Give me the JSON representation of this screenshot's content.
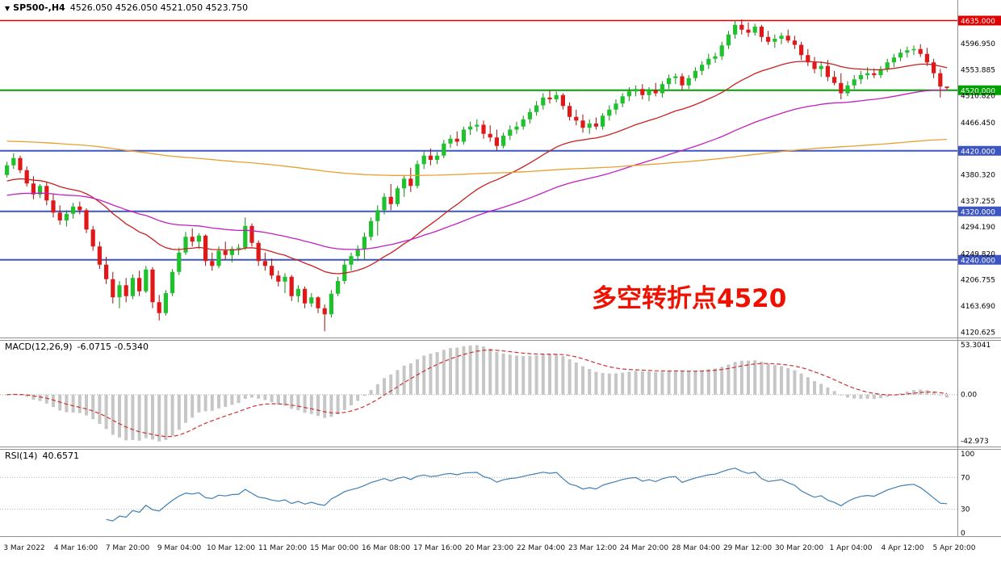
{
  "title_bar": {
    "symbol_period": "SP500-,H4",
    "ohlc": "4526.050 4526.050 4521.050 4523.750"
  },
  "annotation": {
    "text": "多空转折点4520",
    "color": "#EE1100"
  },
  "macd": {
    "label": "MACD(12,26,9)",
    "values": "-6.0715 -0.5340",
    "fast": 12,
    "slow": 26,
    "smoothing": 9,
    "axis_labels": [
      "53.3041",
      "0.00",
      "-42.973"
    ],
    "histogram_color": "#C6C6C6",
    "signal_color": "#D03030"
  },
  "rsi": {
    "label": "RSI(14)",
    "value": "40.6571",
    "period": 14,
    "axis_labels": [
      "100",
      "70",
      "30",
      "0"
    ],
    "levels": [
      70,
      30
    ],
    "line_color": "#3E7FB5"
  },
  "chart_data": {
    "type": "candlestick",
    "symbol": "SP500-",
    "timeframe": "H4",
    "up_color": "#1FC12D",
    "down_color": "#E01818",
    "up_wick": "#128812",
    "down_wick": "#990F0F",
    "y_ticks": [
      4596.95,
      4553.885,
      4510.82,
      4466.45,
      4380.32,
      4337.255,
      4294.19,
      4249.82,
      4206.755,
      4163.69,
      4120.625
    ],
    "hlines": [
      {
        "value": 4635,
        "label": "4635.000",
        "color": "#E00000",
        "width": 1.4
      },
      {
        "value": 4520,
        "label": "4520.000",
        "color": "#00A000",
        "width": 2
      },
      {
        "value": 4420,
        "label": "4420.000",
        "color": "#3D55C0",
        "width": 2
      },
      {
        "value": 4320,
        "label": "4320.000",
        "color": "#3D55C0",
        "width": 2
      },
      {
        "value": 4240,
        "label": "4240.000",
        "color": "#3D55C0",
        "width": 2
      }
    ],
    "moving_averages": [
      {
        "name": "ma-fast",
        "period": 28,
        "seed": 4368,
        "color": "#C82020"
      },
      {
        "name": "ma-mid",
        "period": 70,
        "seed": 4345,
        "color": "#C020C0"
      },
      {
        "name": "ma-slow",
        "period": 320,
        "seed": 4436,
        "color": "#E8A030"
      }
    ],
    "time_labels": [
      "3 Mar 2022",
      "4 Mar 16:00",
      "7 Mar 20:00",
      "9 Mar 04:00",
      "10 Mar 12:00",
      "11 Mar 20:00",
      "15 Mar 00:00",
      "16 Mar 08:00",
      "17 Mar 16:00",
      "20 Mar 23:00",
      "22 Mar 04:00",
      "23 Mar 12:00",
      "24 Mar 20:00",
      "28 Mar 04:00",
      "29 Mar 12:00",
      "30 Mar 20:00",
      "1 Apr 04:00",
      "4 Apr 12:00",
      "5 Apr 20:00"
    ],
    "candles": [
      [
        4380,
        4402,
        4376,
        4396
      ],
      [
        4396,
        4416,
        4390,
        4408
      ],
      [
        4408,
        4412,
        4383,
        4388
      ],
      [
        4388,
        4394,
        4361,
        4366
      ],
      [
        4366,
        4378,
        4340,
        4348
      ],
      [
        4348,
        4365,
        4342,
        4362
      ],
      [
        4362,
        4368,
        4330,
        4338
      ],
      [
        4338,
        4349,
        4310,
        4318
      ],
      [
        4318,
        4330,
        4298,
        4305
      ],
      [
        4305,
        4322,
        4295,
        4316
      ],
      [
        4316,
        4334,
        4308,
        4328
      ],
      [
        4328,
        4336,
        4315,
        4322
      ],
      [
        4322,
        4325,
        4284,
        4290
      ],
      [
        4290,
        4296,
        4255,
        4262
      ],
      [
        4262,
        4270,
        4225,
        4232
      ],
      [
        4232,
        4245,
        4200,
        4208
      ],
      [
        4208,
        4220,
        4168,
        4178
      ],
      [
        4178,
        4205,
        4160,
        4198
      ],
      [
        4198,
        4210,
        4170,
        4180
      ],
      [
        4180,
        4216,
        4175,
        4210
      ],
      [
        4210,
        4222,
        4180,
        4188
      ],
      [
        4188,
        4230,
        4185,
        4224
      ],
      [
        4224,
        4228,
        4160,
        4170
      ],
      [
        4170,
        4182,
        4140,
        4152
      ],
      [
        4152,
        4190,
        4148,
        4185
      ],
      [
        4185,
        4225,
        4180,
        4220
      ],
      [
        4220,
        4260,
        4215,
        4252
      ],
      [
        4252,
        4286,
        4248,
        4278
      ],
      [
        4278,
        4292,
        4262,
        4270
      ],
      [
        4270,
        4284,
        4258,
        4280
      ],
      [
        4280,
        4282,
        4230,
        4238
      ],
      [
        4238,
        4252,
        4222,
        4230
      ],
      [
        4230,
        4262,
        4226,
        4255
      ],
      [
        4255,
        4270,
        4240,
        4248
      ],
      [
        4248,
        4262,
        4236,
        4258
      ],
      [
        4258,
        4266,
        4248,
        4260
      ],
      [
        4260,
        4310,
        4256,
        4296
      ],
      [
        4296,
        4300,
        4262,
        4268
      ],
      [
        4268,
        4272,
        4230,
        4238
      ],
      [
        4238,
        4252,
        4222,
        4230
      ],
      [
        4230,
        4242,
        4208,
        4214
      ],
      [
        4214,
        4222,
        4196,
        4204
      ],
      [
        4204,
        4218,
        4185,
        4212
      ],
      [
        4212,
        4215,
        4172,
        4180
      ],
      [
        4180,
        4198,
        4170,
        4192
      ],
      [
        4192,
        4196,
        4160,
        4168
      ],
      [
        4168,
        4185,
        4162,
        4178
      ],
      [
        4178,
        4180,
        4152,
        4160
      ],
      [
        4160,
        4166,
        4122,
        4150
      ],
      [
        4150,
        4190,
        4145,
        4184
      ],
      [
        4184,
        4212,
        4180,
        4205
      ],
      [
        4205,
        4240,
        4200,
        4232
      ],
      [
        4232,
        4252,
        4222,
        4246
      ],
      [
        4246,
        4264,
        4238,
        4258
      ],
      [
        4258,
        4285,
        4240,
        4278
      ],
      [
        4278,
        4310,
        4272,
        4304
      ],
      [
        4304,
        4330,
        4280,
        4322
      ],
      [
        4322,
        4350,
        4315,
        4344
      ],
      [
        4344,
        4365,
        4322,
        4332
      ],
      [
        4332,
        4362,
        4328,
        4358
      ],
      [
        4358,
        4380,
        4344,
        4374
      ],
      [
        4374,
        4392,
        4352,
        4362
      ],
      [
        4362,
        4404,
        4358,
        4398
      ],
      [
        4398,
        4420,
        4390,
        4412
      ],
      [
        4412,
        4424,
        4396,
        4405
      ],
      [
        4405,
        4418,
        4398,
        4412
      ],
      [
        4412,
        4438,
        4408,
        4432
      ],
      [
        4432,
        4446,
        4425,
        4440
      ],
      [
        4440,
        4452,
        4428,
        4435
      ],
      [
        4435,
        4460,
        4430,
        4455
      ],
      [
        4455,
        4468,
        4446,
        4460
      ],
      [
        4460,
        4472,
        4452,
        4463
      ],
      [
        4463,
        4470,
        4440,
        4448
      ],
      [
        4448,
        4462,
        4435,
        4442
      ],
      [
        4442,
        4455,
        4420,
        4428
      ],
      [
        4428,
        4450,
        4424,
        4445
      ],
      [
        4445,
        4462,
        4438,
        4455
      ],
      [
        4455,
        4468,
        4448,
        4460
      ],
      [
        4460,
        4478,
        4455,
        4472
      ],
      [
        4472,
        4490,
        4465,
        4484
      ],
      [
        4484,
        4502,
        4478,
        4495
      ],
      [
        4495,
        4515,
        4488,
        4508
      ],
      [
        4508,
        4520,
        4498,
        4505
      ],
      [
        4505,
        4518,
        4500,
        4512
      ],
      [
        4512,
        4515,
        4488,
        4494
      ],
      [
        4494,
        4500,
        4470,
        4476
      ],
      [
        4476,
        4488,
        4462,
        4470
      ],
      [
        4470,
        4480,
        4450,
        4458
      ],
      [
        4458,
        4472,
        4448,
        4465
      ],
      [
        4465,
        4475,
        4455,
        4460
      ],
      [
        4460,
        4482,
        4455,
        4478
      ],
      [
        4478,
        4495,
        4470,
        4488
      ],
      [
        4488,
        4505,
        4480,
        4498
      ],
      [
        4498,
        4515,
        4492,
        4510
      ],
      [
        4510,
        4525,
        4502,
        4518
      ],
      [
        4518,
        4528,
        4510,
        4522
      ],
      [
        4522,
        4530,
        4505,
        4512
      ],
      [
        4512,
        4525,
        4502,
        4520
      ],
      [
        4520,
        4532,
        4510,
        4515
      ],
      [
        4515,
        4535,
        4508,
        4530
      ],
      [
        4530,
        4546,
        4522,
        4540
      ],
      [
        4540,
        4548,
        4530,
        4543
      ],
      [
        4543,
        4548,
        4520,
        4528
      ],
      [
        4528,
        4545,
        4522,
        4540
      ],
      [
        4540,
        4558,
        4535,
        4552
      ],
      [
        4552,
        4568,
        4545,
        4562
      ],
      [
        4562,
        4580,
        4555,
        4572
      ],
      [
        4572,
        4582,
        4565,
        4576
      ],
      [
        4576,
        4600,
        4570,
        4594
      ],
      [
        4594,
        4618,
        4588,
        4612
      ],
      [
        4612,
        4635,
        4605,
        4628
      ],
      [
        4628,
        4637,
        4612,
        4620
      ],
      [
        4620,
        4632,
        4608,
        4615
      ],
      [
        4615,
        4630,
        4610,
        4625
      ],
      [
        4625,
        4628,
        4600,
        4608
      ],
      [
        4608,
        4618,
        4595,
        4600
      ],
      [
        4600,
        4612,
        4590,
        4605
      ],
      [
        4605,
        4615,
        4596,
        4610
      ],
      [
        4610,
        4620,
        4598,
        4602
      ],
      [
        4602,
        4610,
        4588,
        4595
      ],
      [
        4595,
        4600,
        4570,
        4578
      ],
      [
        4578,
        4588,
        4560,
        4566
      ],
      [
        4566,
        4575,
        4548,
        4555
      ],
      [
        4555,
        4568,
        4542,
        4560
      ],
      [
        4560,
        4570,
        4535,
        4542
      ],
      [
        4542,
        4552,
        4528,
        4532
      ],
      [
        4532,
        4548,
        4505,
        4515
      ],
      [
        4515,
        4535,
        4510,
        4528
      ],
      [
        4528,
        4545,
        4522,
        4538
      ],
      [
        4538,
        4552,
        4530,
        4545
      ],
      [
        4545,
        4558,
        4538,
        4548
      ],
      [
        4548,
        4556,
        4540,
        4545
      ],
      [
        4545,
        4560,
        4540,
        4555
      ],
      [
        4555,
        4572,
        4550,
        4566
      ],
      [
        4566,
        4580,
        4558,
        4574
      ],
      [
        4574,
        4588,
        4568,
        4582
      ],
      [
        4582,
        4592,
        4574,
        4586
      ],
      [
        4586,
        4594,
        4578,
        4588
      ],
      [
        4588,
        4596,
        4575,
        4580
      ],
      [
        4580,
        4590,
        4560,
        4566
      ],
      [
        4566,
        4572,
        4540,
        4548
      ],
      [
        4548,
        4555,
        4508,
        4526
      ],
      [
        4526.05,
        4526.05,
        4521.05,
        4523.75
      ]
    ]
  }
}
